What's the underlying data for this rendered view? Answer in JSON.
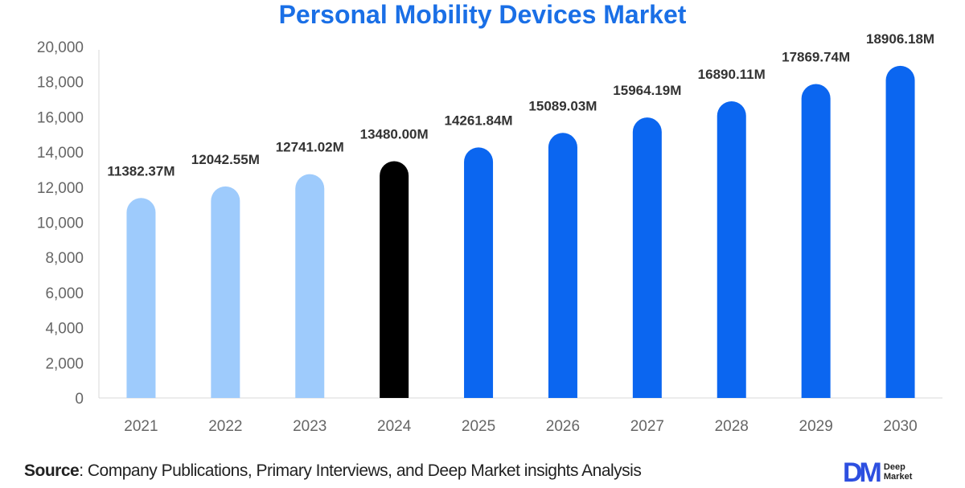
{
  "chart_data": {
    "type": "bar",
    "title": "Personal Mobility Devices Market",
    "categories": [
      "2021",
      "2022",
      "2023",
      "2024",
      "2025",
      "2026",
      "2027",
      "2028",
      "2029",
      "2030"
    ],
    "values": [
      11382.37,
      12042.55,
      12741.02,
      13480.0,
      14261.84,
      15089.03,
      15964.19,
      16890.11,
      17869.74,
      18906.18
    ],
    "data_labels": [
      "11382.37M",
      "12042.55M",
      "12741.02M",
      "13480.00M",
      "14261.84M",
      "15089.03M",
      "15964.19M",
      "16890.11M",
      "17869.74M",
      "18906.18M"
    ],
    "bar_colors": [
      "#9ecbfc",
      "#9ecbfc",
      "#9ecbfc",
      "#000000",
      "#0b66f0",
      "#0b66f0",
      "#0b66f0",
      "#0b66f0",
      "#0b66f0",
      "#0b66f0"
    ],
    "ylim": [
      0,
      20000
    ],
    "yticks": [
      "0",
      "2,000",
      "4,000",
      "6,000",
      "8,000",
      "10,000",
      "12,000",
      "14,000",
      "16,000",
      "18,000",
      "20,000"
    ],
    "xlabel": "",
    "ylabel": "",
    "grid": false,
    "legend": "none"
  },
  "source": {
    "label": "Source",
    "text": ": Company Publications, Primary Interviews, and Deep Market insights Analysis"
  },
  "logo": {
    "mark": "DM",
    "line1": "Deep",
    "line2": "Market"
  },
  "colors": {
    "title": "#1a6fe6"
  }
}
